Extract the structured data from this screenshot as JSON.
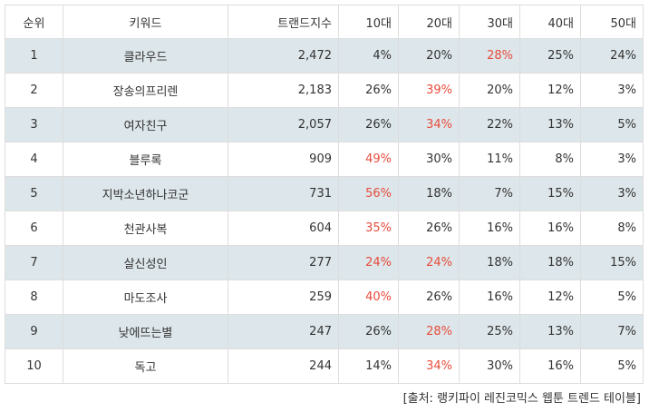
{
  "headers": [
    "순위",
    "키워드",
    "트랜드지수",
    "10대",
    "20대",
    "30대",
    "40대",
    "50대"
  ],
  "rows": [
    {
      "rank": "1",
      "keyword": "클라우드",
      "index": "2,472",
      "ages": [
        "4%",
        "20%",
        "28%",
        "25%",
        "24%"
      ],
      "highlight": 2
    },
    {
      "rank": "2",
      "keyword": "장송의프리렌",
      "index": "2,183",
      "ages": [
        "26%",
        "39%",
        "20%",
        "12%",
        "3%"
      ],
      "highlight": 1
    },
    {
      "rank": "3",
      "keyword": "여자친구",
      "index": "2,057",
      "ages": [
        "26%",
        "34%",
        "22%",
        "13%",
        "5%"
      ],
      "highlight": 1
    },
    {
      "rank": "4",
      "keyword": "블루록",
      "index": "909",
      "ages": [
        "49%",
        "30%",
        "11%",
        "8%",
        "3%"
      ],
      "highlight": 0
    },
    {
      "rank": "5",
      "keyword": "지박소년하나코군",
      "index": "731",
      "ages": [
        "56%",
        "18%",
        "7%",
        "15%",
        "3%"
      ],
      "highlight": 0
    },
    {
      "rank": "6",
      "keyword": "천관사복",
      "index": "604",
      "ages": [
        "35%",
        "26%",
        "16%",
        "16%",
        "8%"
      ],
      "highlight": 0
    },
    {
      "rank": "7",
      "keyword": "살신성인",
      "index": "277",
      "ages": [
        "24%",
        "24%",
        "18%",
        "18%",
        "15%"
      ],
      "highlight": [
        0,
        1
      ]
    },
    {
      "rank": "8",
      "keyword": "마도조사",
      "index": "259",
      "ages": [
        "40%",
        "26%",
        "16%",
        "12%",
        "5%"
      ],
      "highlight": 0
    },
    {
      "rank": "9",
      "keyword": "낮에뜨는별",
      "index": "247",
      "ages": [
        "26%",
        "28%",
        "25%",
        "13%",
        "7%"
      ],
      "highlight": 1
    },
    {
      "rank": "10",
      "keyword": "독고",
      "index": "244",
      "ages": [
        "14%",
        "34%",
        "30%",
        "16%",
        "5%"
      ],
      "highlight": 1
    }
  ],
  "caption": "[출처: 랭키파이 레진코믹스 웹툰 트렌드 테이블]",
  "colors": {
    "highlight": "#e74c3c",
    "stripe": "#dde6ea",
    "border": "#dddddd"
  }
}
